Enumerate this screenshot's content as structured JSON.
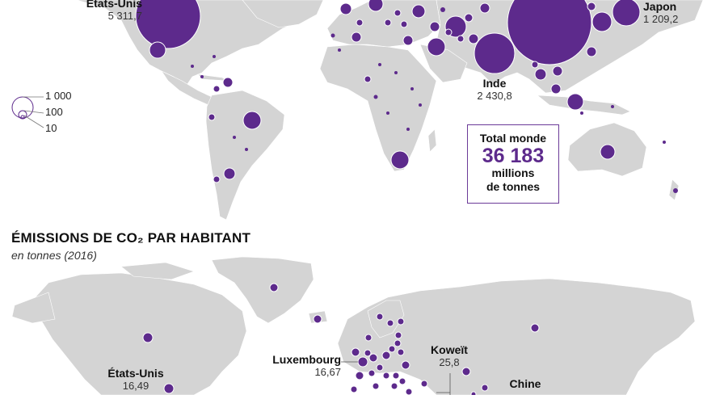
{
  "colors": {
    "bubble": "#5d2a8c",
    "land": "#d4d4d4",
    "background": "#ffffff"
  },
  "map1": {
    "labels": [
      {
        "id": "usa",
        "name": "États-Unis",
        "value": "5 311,7"
      },
      {
        "id": "japan",
        "name": "Japon",
        "value": "1 209,2"
      },
      {
        "id": "india",
        "name": "Inde",
        "value": "2 430,8"
      }
    ],
    "legend": [
      "1 000",
      "100",
      "10"
    ],
    "total": {
      "line1": "Total monde",
      "value": "36 183",
      "line3": "millions",
      "line4": "de tonnes"
    }
  },
  "map2": {
    "title": "ÉMISSIONS DE CO₂ PAR HABITANT",
    "subtitle": "en tonnes (2016)",
    "labels": [
      {
        "id": "usa2",
        "name": "États-Unis",
        "value": "16,49"
      },
      {
        "id": "luxembourg",
        "name": "Luxembourg",
        "value": "16,67"
      },
      {
        "id": "kuwait",
        "name": "Koweït",
        "value": "25,8"
      },
      {
        "id": "china",
        "name": "Chine",
        "value": ""
      }
    ]
  }
}
